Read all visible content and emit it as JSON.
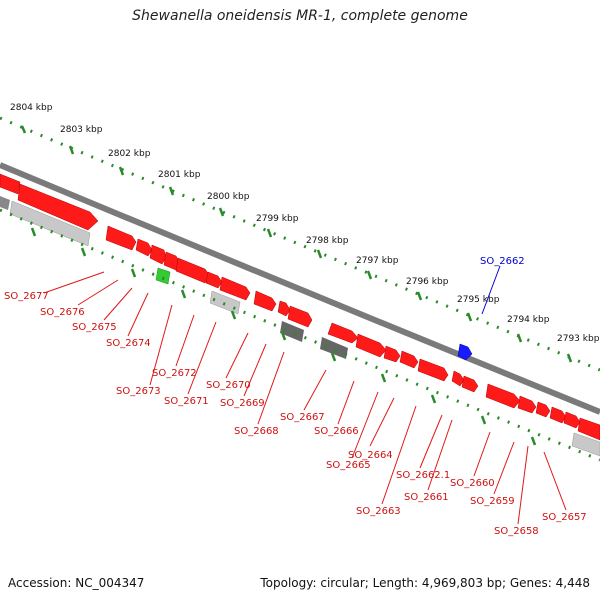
{
  "title": "Shewanella oneidensis MR-1, complete genome",
  "accession": "Accession: NC_004347",
  "summary": "Topology: circular; Length: 4,969,803 bp; Genes: 4,448",
  "scale_labels": [
    "2804 kbp",
    "2803 kbp",
    "2802 kbp",
    "2801 kbp",
    "2800 kbp",
    "2799 kbp",
    "2798 kbp",
    "2797 kbp",
    "2796 kbp",
    "2795 kbp",
    "2794 kbp",
    "2793 kbp"
  ],
  "gene_labels": [
    "SO_2677",
    "SO_2676",
    "SO_2675",
    "SO_2674",
    "SO_2673",
    "SO_2672",
    "SO_2671",
    "SO_2670",
    "SO_2669",
    "SO_2668",
    "SO_2667",
    "SO_2666",
    "SO_2665",
    "SO_2664",
    "SO_2663",
    "SO_2662.1",
    "SO_2661",
    "SO_2660",
    "SO_2659",
    "SO_2658",
    "SO_2657"
  ],
  "highlight_label": "SO_2662",
  "colors": {
    "gene": "#ff1a1a",
    "gene_dark": "#b30000",
    "highlight_blue": "#1a1aff",
    "highlight_green": "#33cc33",
    "ticks": "#2a8a2a",
    "backbone": "#888888",
    "grey_feature": "#c8c8c8",
    "dark_feature": "#666666"
  }
}
